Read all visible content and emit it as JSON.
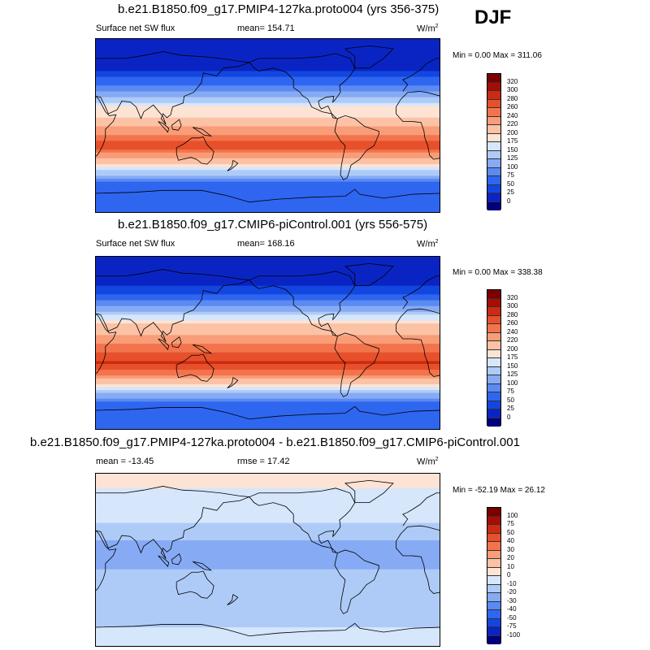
{
  "season": "DJF",
  "panels": [
    {
      "title": "b.e21.B1850.f09_g17.PMIP4-127ka.proto004 (yrs 356-375)",
      "left_label": "Surface net SW flux",
      "center_label": "mean= 154.71",
      "units": "W/m",
      "units_exp": "2",
      "minmax": "Min =   0.00 Max = 311.06",
      "ticks": [
        "320",
        "300",
        "280",
        "260",
        "240",
        "220",
        "200",
        "175",
        "150",
        "125",
        "100",
        "75",
        "50",
        "25",
        "0"
      ]
    },
    {
      "title": "b.e21.B1850.f09_g17.CMIP6-piControl.001 (yrs 556-575)",
      "left_label": "Surface net SW flux",
      "center_label": "mean= 168.16",
      "units": "W/m",
      "units_exp": "2",
      "minmax": "Min =   0.00 Max = 338.38",
      "ticks": [
        "320",
        "300",
        "280",
        "260",
        "240",
        "220",
        "200",
        "175",
        "150",
        "125",
        "100",
        "75",
        "50",
        "25",
        "0"
      ]
    },
    {
      "title": "b.e21.B1850.f09_g17.PMIP4-127ka.proto004 - b.e21.B1850.f09_g17.CMIP6-piControl.001",
      "left_label": "mean = -13.45",
      "center_label": "rmse =  17.42",
      "units": "W/m",
      "units_exp": "2",
      "minmax": "Min = -52.19 Max =  26.12",
      "ticks": [
        "100",
        "75",
        "50",
        "40",
        "30",
        "20",
        "10",
        "0",
        "-10",
        "-20",
        "-30",
        "-40",
        "-50",
        "-75",
        "-100"
      ]
    }
  ],
  "chart_data": [
    {
      "type": "heatmap",
      "title": "b.e21.B1850.f09_g17.PMIP4-127ka.proto004 (yrs 356-375)",
      "variable": "Surface net SW flux",
      "units": "W/m2",
      "mean": 154.71,
      "min": 0.0,
      "max": 311.06,
      "levels": [
        0,
        25,
        50,
        75,
        100,
        125,
        150,
        175,
        200,
        220,
        240,
        260,
        280,
        300,
        320
      ],
      "colors": [
        "#00007a",
        "#0a24c4",
        "#1346e0",
        "#2f66f0",
        "#5a8af2",
        "#86aaf4",
        "#aecbf7",
        "#d6e6fb",
        "#fde3d4",
        "#fbc2a6",
        "#f89d78",
        "#f3744c",
        "#e6502a",
        "#cc2a12",
        "#a50d05",
        "#7a0000"
      ],
      "zonal_profile_lat": [
        90,
        60,
        40,
        20,
        0,
        -20,
        -40,
        -60,
        -90
      ],
      "zonal_profile_value": [
        0,
        20,
        80,
        175,
        220,
        270,
        190,
        60,
        60
      ]
    },
    {
      "type": "heatmap",
      "title": "b.e21.B1850.f09_g17.CMIP6-piControl.001 (yrs 556-575)",
      "variable": "Surface net SW flux",
      "units": "W/m2",
      "mean": 168.16,
      "min": 0.0,
      "max": 338.38,
      "levels": [
        0,
        25,
        50,
        75,
        100,
        125,
        150,
        175,
        200,
        220,
        240,
        260,
        280,
        300,
        320
      ],
      "colors": [
        "#00007a",
        "#0a24c4",
        "#1346e0",
        "#2f66f0",
        "#5a8af2",
        "#86aaf4",
        "#aecbf7",
        "#d6e6fb",
        "#fde3d4",
        "#fbc2a6",
        "#f89d78",
        "#f3744c",
        "#e6502a",
        "#cc2a12",
        "#a50d05",
        "#7a0000"
      ],
      "zonal_profile_lat": [
        90,
        60,
        40,
        20,
        0,
        -20,
        -40,
        -60,
        -90
      ],
      "zonal_profile_value": [
        0,
        20,
        90,
        200,
        240,
        285,
        210,
        70,
        60
      ]
    },
    {
      "type": "heatmap",
      "title": "b.e21.B1850.f09_g17.PMIP4-127ka.proto004 - b.e21.B1850.f09_g17.CMIP6-piControl.001",
      "units": "W/m2",
      "mean": -13.45,
      "rmse": 17.42,
      "min": -52.19,
      "max": 26.12,
      "levels": [
        -100,
        -75,
        -50,
        -40,
        -30,
        -20,
        -10,
        0,
        10,
        20,
        30,
        40,
        50,
        75,
        100
      ],
      "colors": [
        "#00007a",
        "#0a24c4",
        "#1346e0",
        "#2f66f0",
        "#5a8af2",
        "#86aaf4",
        "#aecbf7",
        "#d6e6fb",
        "#fde3d4",
        "#fbc2a6",
        "#f89d78",
        "#f3744c",
        "#e6502a",
        "#cc2a12",
        "#a50d05",
        "#7a0000"
      ],
      "zonal_profile_lat": [
        90,
        60,
        40,
        20,
        0,
        -20,
        -40,
        -60,
        -90
      ],
      "zonal_profile_value": [
        5,
        -5,
        -10,
        -20,
        -25,
        -15,
        -10,
        -12,
        -5
      ]
    }
  ]
}
